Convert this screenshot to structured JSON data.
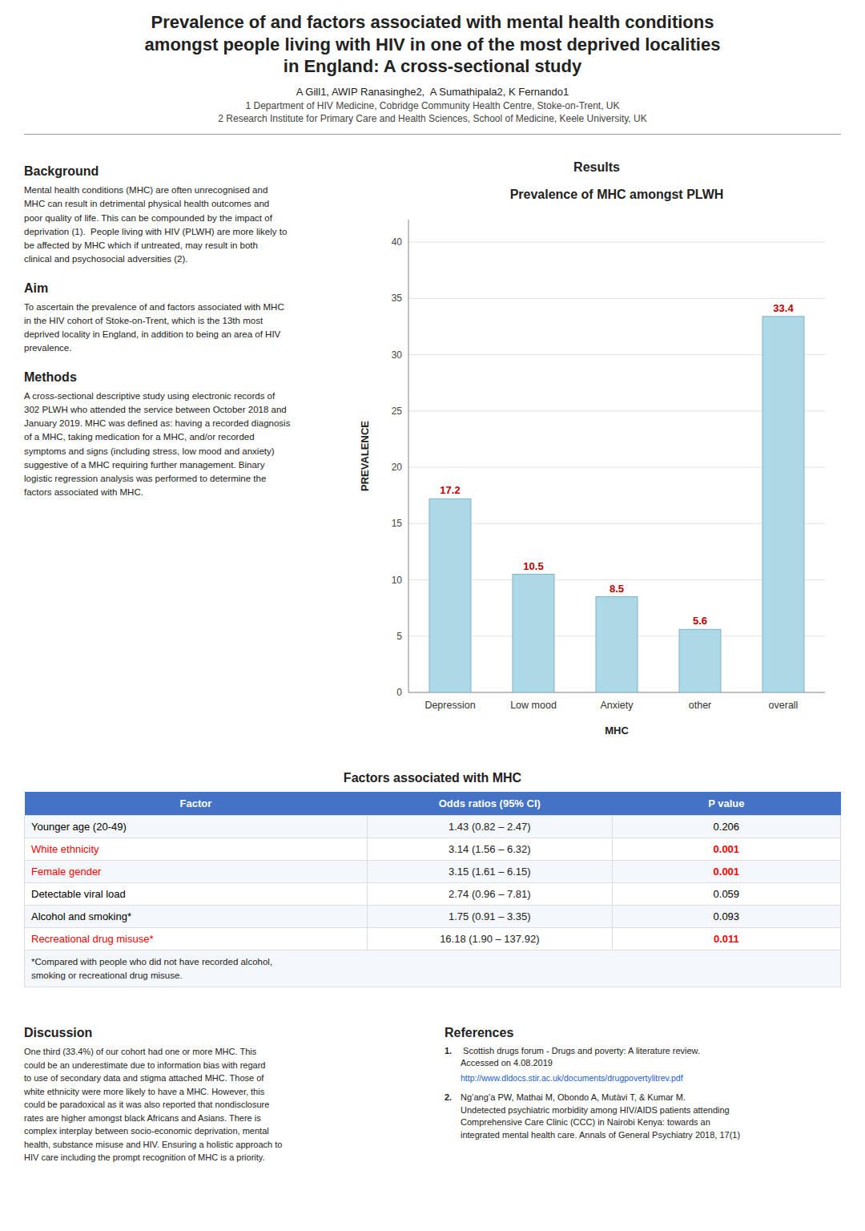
{
  "title": "Prevalence of and factors associated with mental health conditions\namongst people living with HIV in one of the most deprived localities\nin England: A cross-sectional study",
  "authors": "A Gill1, AWIP Ranasinghe2,  A Sumathipala2, K Fernando1",
  "affiliations": [
    "1 Department of HIV Medicine, Cobridge Community Health Centre, Stoke-on-Trent, UK",
    "2 Research Institute for Primary Care and Health Sciences, School of Medicine, Keele University, UK"
  ],
  "sections": [
    {
      "heading": "Background",
      "text": "Mental health conditions (MHC) are often unrecognised and\nMHC can result in detrimental physical health outcomes and\npoor quality of life. This can be compounded by the impact of\ndeprivation (1).  People living with HIV (PLWH) are more likely to\nbe affected by MHC which if untreated, may result in both\nclinical and psychosocial adversities (2)."
    },
    {
      "heading": "Aim",
      "text": "To ascertain the prevalence of and factors associated with MHC\nin the HIV cohort of Stoke-on-Trent, which is the 13th most\ndeprived locality in England, in addition to being an area of HIV\nprevalence."
    },
    {
      "heading": "Methods",
      "text": "A cross-sectional descriptive study using electronic records of\n302 PLWH who attended the service between October 2018 and\nJanuary 2019. MHC was defined as: having a recorded diagnosis\nof a MHC, taking medication for a MHC, and/or recorded\nsymptoms and signs (including stress, low mood and anxiety)\nsuggestive of a MHC requiring further management. Binary\nlogistic regression analysis was performed to determine the\nfactors associated with MHC."
    }
  ],
  "results_heading": "Results",
  "chart_data": {
    "type": "bar",
    "title": "Prevalence of MHC amongst PLWH",
    "x_label": "MHC",
    "y_label": "PREVALENCE",
    "categories": [
      "Depression",
      "Low mood",
      "Anxiety",
      "other",
      "overall"
    ],
    "values": [
      17.2,
      10.5,
      8.5,
      5.6,
      33.4
    ],
    "color": "#add8e6",
    "ylim": [
      0,
      42
    ],
    "yticks": [
      0,
      5,
      10,
      15,
      20,
      25,
      30,
      35,
      40
    ],
    "grid": true,
    "data_labels": true
  },
  "table": {
    "title": "Factors associated with MHC",
    "header": [
      "Factor",
      "Odds ratios (95% CI)",
      "P value"
    ],
    "rows": [
      {
        "factor": "Younger age (20-49)",
        "odds_ratio": "1.43 (0.82 – 2.47)",
        "p_value": "0.206",
        "color": "black"
      },
      {
        "factor": "White ethnicity",
        "odds_ratio": "3.14 (1.56 – 6.32)",
        "p_value": "0.001",
        "color": "red"
      },
      {
        "factor": "Female gender",
        "odds_ratio": "3.15 (1.61 – 6.15)",
        "p_value": "0.001",
        "color": "red"
      },
      {
        "factor": "Detectable viral load",
        "odds_ratio": "2.74 (0.96 – 7.81)",
        "p_value": "0.059",
        "color": "black"
      },
      {
        "factor": "Alcohol and smoking*",
        "odds_ratio": "1.75 (0.91 – 3.35)",
        "p_value": "0.093",
        "color": "black"
      },
      {
        "factor": "Recreational drug misuse*",
        "odds_ratio": "16.18 (1.90 – 137.92)",
        "p_value": "0.011",
        "color": "red"
      }
    ],
    "footnote": "*Compared with people who did not have recorded alcohol,\nsmoking or recreational drug misuse."
  },
  "discussion": {
    "heading": "Discussion",
    "text": "One third (33.4%) of our cohort had one or more MHC. This\ncould be an underestimate due to information bias with regard\nto use of secondary data and stigma attached MHC. Those of\nwhite ethnicity were more likely to have a MHC. However, this\ncould be paradoxical as it was also reported that nondisclosure\nrates are higher amongst black Africans and Asians. There is\ncomplex interplay between socio-economic deprivation, mental\nhealth, substance misuse and HIV. Ensuring a holistic approach to\nHIV care including the prompt recognition of MHC is a priority."
  },
  "references": {
    "heading": "References",
    "items": [
      {
        "number": "1.",
        "text": " Scottish drugs forum - Drugs and poverty: A literature review.\nAccessed on 4.08.2019",
        "url": "http://www.dldocs.stir.ac.uk/documents/drugpovertylitrev.pdf"
      },
      {
        "number": "2.",
        "text": "Ng’ang’a PW, Mathai M, Obondo A, Mutàvi T, & Kumar M.\nUndetected psychiatric morbidity among HIV/AIDS patients attending\nComprehensive Care Clinic (CCC) in Nairobi Kenya: towards an\nintegrated mental health care. Annals of General Psychiatry 2018, 17(1)"
      }
    ]
  }
}
